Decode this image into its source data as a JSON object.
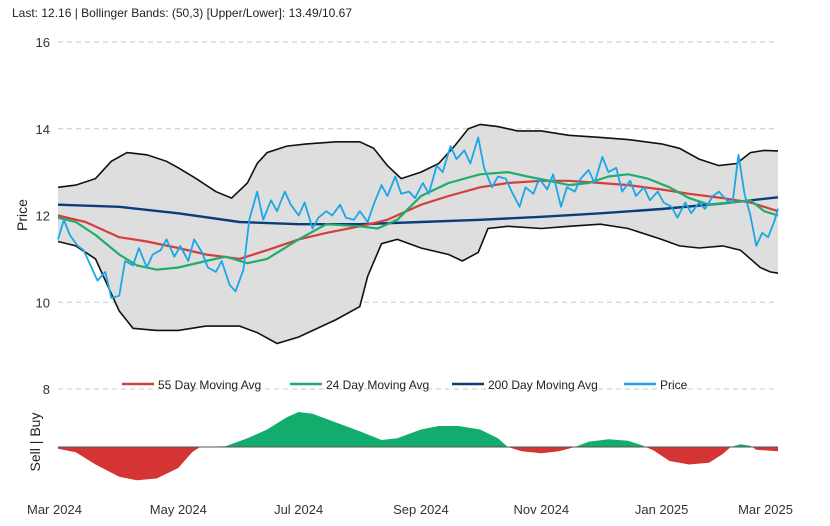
{
  "header": {
    "text": "Last: 12.16 | Bollinger Bands: (50,3) [Upper/Lower]: 13.49/10.67"
  },
  "chart_data": {
    "type": "line",
    "ylabel": "Price",
    "signal_label": "Sell | Buy",
    "ylim": [
      8,
      16
    ],
    "y_ticks": [
      8,
      10,
      12,
      14,
      16
    ],
    "x_range": [
      "2024-03-01",
      "2025-03-01"
    ],
    "x_ticks": [
      {
        "date": "2024-03-01",
        "label": "Mar 2024"
      },
      {
        "date": "2024-05-01",
        "label": "May 2024"
      },
      {
        "date": "2024-07-01",
        "label": "Jul 2024"
      },
      {
        "date": "2024-09-01",
        "label": "Sep 2024"
      },
      {
        "date": "2024-11-01",
        "label": "Nov 2024"
      },
      {
        "date": "2025-01-01",
        "label": "Jan 2025"
      },
      {
        "date": "2025-03-01",
        "label": "Mar 2025"
      }
    ],
    "grid": true,
    "colors": {
      "price": "#1aa7e8",
      "ma55": "#d63d3d",
      "ma24": "#1fad6b",
      "ma200": "#0b3d7a",
      "band_fill": "#dedede",
      "band_line": "#111111",
      "buy": "#12ad6c",
      "sell": "#d53434"
    },
    "legend": [
      {
        "key": "ma55",
        "label": "55 Day Moving Avg"
      },
      {
        "key": "ma24",
        "label": "24 Day Moving Avg"
      },
      {
        "key": "ma200",
        "label": "200 Day Moving Avg"
      },
      {
        "key": "price",
        "label": "Price"
      }
    ],
    "series": {
      "upper": [
        [
          "2024-03-01",
          12.65
        ],
        [
          "2024-03-10",
          12.7
        ],
        [
          "2024-03-20",
          12.85
        ],
        [
          "2024-03-28",
          13.25
        ],
        [
          "2024-04-05",
          13.45
        ],
        [
          "2024-04-15",
          13.4
        ],
        [
          "2024-04-25",
          13.25
        ],
        [
          "2024-05-01",
          13.1
        ],
        [
          "2024-05-10",
          12.85
        ],
        [
          "2024-05-20",
          12.55
        ],
        [
          "2024-05-28",
          12.4
        ],
        [
          "2024-06-05",
          12.75
        ],
        [
          "2024-06-10",
          13.2
        ],
        [
          "2024-06-15",
          13.45
        ],
        [
          "2024-06-25",
          13.6
        ],
        [
          "2024-07-05",
          13.65
        ],
        [
          "2024-07-20",
          13.7
        ],
        [
          "2024-08-01",
          13.7
        ],
        [
          "2024-08-08",
          13.55
        ],
        [
          "2024-08-15",
          13.15
        ],
        [
          "2024-08-22",
          12.85
        ],
        [
          "2024-09-01",
          13.0
        ],
        [
          "2024-09-10",
          13.2
        ],
        [
          "2024-09-18",
          13.6
        ],
        [
          "2024-09-25",
          14.0
        ],
        [
          "2024-10-01",
          14.1
        ],
        [
          "2024-10-10",
          14.05
        ],
        [
          "2024-10-20",
          13.95
        ],
        [
          "2024-11-01",
          13.95
        ],
        [
          "2024-11-15",
          13.85
        ],
        [
          "2024-12-01",
          13.8
        ],
        [
          "2024-12-15",
          13.75
        ],
        [
          "2025-01-01",
          13.65
        ],
        [
          "2025-01-10",
          13.55
        ],
        [
          "2025-01-20",
          13.3
        ],
        [
          "2025-01-30",
          13.15
        ],
        [
          "2025-02-08",
          13.2
        ],
        [
          "2025-02-15",
          13.45
        ],
        [
          "2025-02-22",
          13.5
        ],
        [
          "2025-03-01",
          13.49
        ]
      ],
      "lower": [
        [
          "2024-03-01",
          11.4
        ],
        [
          "2024-03-10",
          11.3
        ],
        [
          "2024-03-20",
          11.0
        ],
        [
          "2024-04-01",
          9.8
        ],
        [
          "2024-04-08",
          9.4
        ],
        [
          "2024-04-20",
          9.35
        ],
        [
          "2024-05-01",
          9.35
        ],
        [
          "2024-05-15",
          9.45
        ],
        [
          "2024-06-01",
          9.45
        ],
        [
          "2024-06-10",
          9.3
        ],
        [
          "2024-06-20",
          9.05
        ],
        [
          "2024-07-01",
          9.2
        ],
        [
          "2024-07-20",
          9.6
        ],
        [
          "2024-08-01",
          9.9
        ],
        [
          "2024-08-05",
          10.6
        ],
        [
          "2024-08-12",
          11.35
        ],
        [
          "2024-08-20",
          11.45
        ],
        [
          "2024-09-01",
          11.25
        ],
        [
          "2024-09-15",
          11.1
        ],
        [
          "2024-09-22",
          10.95
        ],
        [
          "2024-09-30",
          11.15
        ],
        [
          "2024-10-05",
          11.7
        ],
        [
          "2024-10-15",
          11.75
        ],
        [
          "2024-11-01",
          11.7
        ],
        [
          "2024-11-15",
          11.75
        ],
        [
          "2024-12-01",
          11.8
        ],
        [
          "2024-12-15",
          11.7
        ],
        [
          "2025-01-01",
          11.45
        ],
        [
          "2025-01-10",
          11.3
        ],
        [
          "2025-01-20",
          11.25
        ],
        [
          "2025-02-01",
          11.3
        ],
        [
          "2025-02-10",
          11.2
        ],
        [
          "2025-02-20",
          10.8
        ],
        [
          "2025-02-25",
          10.7
        ],
        [
          "2025-03-01",
          10.67
        ]
      ],
      "ma200": [
        [
          "2024-03-01",
          12.25
        ],
        [
          "2024-04-01",
          12.2
        ],
        [
          "2024-05-01",
          12.05
        ],
        [
          "2024-06-01",
          11.85
        ],
        [
          "2024-07-01",
          11.8
        ],
        [
          "2024-08-01",
          11.8
        ],
        [
          "2024-09-01",
          11.85
        ],
        [
          "2024-10-01",
          11.9
        ],
        [
          "2024-11-01",
          11.97
        ],
        [
          "2024-12-01",
          12.05
        ],
        [
          "2025-01-01",
          12.15
        ],
        [
          "2025-02-01",
          12.28
        ],
        [
          "2025-03-01",
          12.42
        ]
      ],
      "ma55": [
        [
          "2024-03-01",
          12.0
        ],
        [
          "2024-03-15",
          11.85
        ],
        [
          "2024-04-01",
          11.5
        ],
        [
          "2024-04-15",
          11.4
        ],
        [
          "2024-05-01",
          11.25
        ],
        [
          "2024-05-15",
          11.1
        ],
        [
          "2024-06-01",
          11.0
        ],
        [
          "2024-06-15",
          11.2
        ],
        [
          "2024-07-01",
          11.45
        ],
        [
          "2024-07-15",
          11.6
        ],
        [
          "2024-08-01",
          11.75
        ],
        [
          "2024-08-15",
          11.9
        ],
        [
          "2024-09-01",
          12.25
        ],
        [
          "2024-09-15",
          12.45
        ],
        [
          "2024-10-01",
          12.65
        ],
        [
          "2024-10-15",
          12.75
        ],
        [
          "2024-11-01",
          12.8
        ],
        [
          "2024-11-15",
          12.8
        ],
        [
          "2024-12-01",
          12.75
        ],
        [
          "2024-12-15",
          12.7
        ],
        [
          "2025-01-01",
          12.6
        ],
        [
          "2025-01-15",
          12.5
        ],
        [
          "2025-02-01",
          12.4
        ],
        [
          "2025-02-15",
          12.3
        ],
        [
          "2025-03-01",
          12.1
        ]
      ],
      "ma24": [
        [
          "2024-03-01",
          11.95
        ],
        [
          "2024-03-10",
          11.85
        ],
        [
          "2024-03-20",
          11.55
        ],
        [
          "2024-04-01",
          11.1
        ],
        [
          "2024-04-10",
          10.85
        ],
        [
          "2024-04-20",
          10.75
        ],
        [
          "2024-05-01",
          10.8
        ],
        [
          "2024-05-15",
          10.95
        ],
        [
          "2024-05-25",
          11.05
        ],
        [
          "2024-06-05",
          10.9
        ],
        [
          "2024-06-15",
          11.0
        ],
        [
          "2024-07-01",
          11.45
        ],
        [
          "2024-07-15",
          11.8
        ],
        [
          "2024-08-01",
          11.75
        ],
        [
          "2024-08-10",
          11.7
        ],
        [
          "2024-08-20",
          11.9
        ],
        [
          "2024-09-01",
          12.45
        ],
        [
          "2024-09-15",
          12.75
        ],
        [
          "2024-10-01",
          12.95
        ],
        [
          "2024-10-15",
          13.0
        ],
        [
          "2024-10-25",
          12.9
        ],
        [
          "2024-11-05",
          12.8
        ],
        [
          "2024-11-15",
          12.7
        ],
        [
          "2024-11-25",
          12.75
        ],
        [
          "2024-12-05",
          12.9
        ],
        [
          "2024-12-15",
          12.95
        ],
        [
          "2024-12-25",
          12.85
        ],
        [
          "2025-01-05",
          12.65
        ],
        [
          "2025-01-15",
          12.4
        ],
        [
          "2025-01-25",
          12.25
        ],
        [
          "2025-02-05",
          12.3
        ],
        [
          "2025-02-15",
          12.35
        ],
        [
          "2025-02-22",
          12.1
        ],
        [
          "2025-03-01",
          12.0
        ]
      ],
      "price": [
        [
          "2024-03-01",
          11.45
        ],
        [
          "2024-03-04",
          11.9
        ],
        [
          "2024-03-07",
          11.55
        ],
        [
          "2024-03-11",
          11.3
        ],
        [
          "2024-03-14",
          11.2
        ],
        [
          "2024-03-18",
          10.8
        ],
        [
          "2024-03-21",
          10.5
        ],
        [
          "2024-03-25",
          10.7
        ],
        [
          "2024-03-28",
          10.1
        ],
        [
          "2024-04-01",
          10.15
        ],
        [
          "2024-04-04",
          10.95
        ],
        [
          "2024-04-08",
          10.85
        ],
        [
          "2024-04-11",
          11.25
        ],
        [
          "2024-04-15",
          10.8
        ],
        [
          "2024-04-18",
          11.1
        ],
        [
          "2024-04-22",
          11.2
        ],
        [
          "2024-04-25",
          11.45
        ],
        [
          "2024-04-29",
          11.05
        ],
        [
          "2024-05-02",
          11.3
        ],
        [
          "2024-05-06",
          10.95
        ],
        [
          "2024-05-09",
          11.45
        ],
        [
          "2024-05-13",
          11.15
        ],
        [
          "2024-05-16",
          10.8
        ],
        [
          "2024-05-20",
          10.7
        ],
        [
          "2024-05-23",
          10.95
        ],
        [
          "2024-05-27",
          10.4
        ],
        [
          "2024-05-30",
          10.25
        ],
        [
          "2024-06-03",
          10.75
        ],
        [
          "2024-06-06",
          11.9
        ],
        [
          "2024-06-10",
          12.55
        ],
        [
          "2024-06-13",
          11.9
        ],
        [
          "2024-06-17",
          12.35
        ],
        [
          "2024-06-20",
          12.1
        ],
        [
          "2024-06-24",
          12.55
        ],
        [
          "2024-06-27",
          12.25
        ],
        [
          "2024-07-01",
          12.0
        ],
        [
          "2024-07-04",
          12.3
        ],
        [
          "2024-07-08",
          11.7
        ],
        [
          "2024-07-11",
          11.95
        ],
        [
          "2024-07-15",
          12.1
        ],
        [
          "2024-07-18",
          12.0
        ],
        [
          "2024-07-22",
          12.25
        ],
        [
          "2024-07-25",
          11.95
        ],
        [
          "2024-07-29",
          11.9
        ],
        [
          "2024-08-01",
          12.1
        ],
        [
          "2024-08-05",
          11.85
        ],
        [
          "2024-08-08",
          12.25
        ],
        [
          "2024-08-12",
          12.7
        ],
        [
          "2024-08-15",
          12.45
        ],
        [
          "2024-08-19",
          12.9
        ],
        [
          "2024-08-22",
          12.5
        ],
        [
          "2024-08-26",
          12.55
        ],
        [
          "2024-08-29",
          12.4
        ],
        [
          "2024-09-02",
          12.75
        ],
        [
          "2024-09-05",
          12.5
        ],
        [
          "2024-09-09",
          13.15
        ],
        [
          "2024-09-12",
          13.0
        ],
        [
          "2024-09-16",
          13.6
        ],
        [
          "2024-09-19",
          13.3
        ],
        [
          "2024-09-23",
          13.5
        ],
        [
          "2024-09-26",
          13.2
        ],
        [
          "2024-09-30",
          13.8
        ],
        [
          "2024-10-03",
          13.1
        ],
        [
          "2024-10-07",
          12.65
        ],
        [
          "2024-10-10",
          12.9
        ],
        [
          "2024-10-14",
          12.85
        ],
        [
          "2024-10-17",
          12.55
        ],
        [
          "2024-10-21",
          12.2
        ],
        [
          "2024-10-24",
          12.65
        ],
        [
          "2024-10-28",
          12.5
        ],
        [
          "2024-10-31",
          12.85
        ],
        [
          "2024-11-04",
          12.6
        ],
        [
          "2024-11-07",
          12.95
        ],
        [
          "2024-11-11",
          12.2
        ],
        [
          "2024-11-14",
          12.65
        ],
        [
          "2024-11-18",
          12.55
        ],
        [
          "2024-11-21",
          12.85
        ],
        [
          "2024-11-25",
          13.05
        ],
        [
          "2024-11-28",
          12.75
        ],
        [
          "2024-12-02",
          13.35
        ],
        [
          "2024-12-05",
          13.0
        ],
        [
          "2024-12-09",
          13.1
        ],
        [
          "2024-12-12",
          12.55
        ],
        [
          "2024-12-16",
          12.8
        ],
        [
          "2024-12-19",
          12.45
        ],
        [
          "2024-12-23",
          12.65
        ],
        [
          "2024-12-26",
          12.35
        ],
        [
          "2024-12-30",
          12.55
        ],
        [
          "2025-01-02",
          12.3
        ],
        [
          "2025-01-06",
          12.2
        ],
        [
          "2025-01-09",
          11.95
        ],
        [
          "2025-01-13",
          12.3
        ],
        [
          "2025-01-16",
          12.05
        ],
        [
          "2025-01-20",
          12.3
        ],
        [
          "2025-01-23",
          12.15
        ],
        [
          "2025-01-27",
          12.45
        ],
        [
          "2025-01-30",
          12.55
        ],
        [
          "2025-02-03",
          12.35
        ],
        [
          "2025-02-06",
          12.3
        ],
        [
          "2025-02-09",
          13.4
        ],
        [
          "2025-02-12",
          12.5
        ],
        [
          "2025-02-15",
          12.0
        ],
        [
          "2025-02-18",
          11.3
        ],
        [
          "2025-02-21",
          11.6
        ],
        [
          "2025-02-24",
          11.5
        ],
        [
          "2025-02-27",
          11.85
        ],
        [
          "2025-03-01",
          12.16
        ]
      ]
    },
    "signal": [
      [
        "2024-03-01",
        -0.05
      ],
      [
        "2024-03-10",
        -0.15
      ],
      [
        "2024-03-20",
        -0.5
      ],
      [
        "2024-04-01",
        -0.85
      ],
      [
        "2024-04-10",
        -0.95
      ],
      [
        "2024-04-20",
        -0.9
      ],
      [
        "2024-05-01",
        -0.6
      ],
      [
        "2024-05-08",
        -0.15
      ],
      [
        "2024-05-12",
        0.0
      ],
      [
        "2024-05-25",
        0.02
      ],
      [
        "2024-06-05",
        0.25
      ],
      [
        "2024-06-15",
        0.5
      ],
      [
        "2024-06-25",
        0.85
      ],
      [
        "2024-07-01",
        1.0
      ],
      [
        "2024-07-08",
        0.95
      ],
      [
        "2024-07-20",
        0.7
      ],
      [
        "2024-08-01",
        0.45
      ],
      [
        "2024-08-12",
        0.2
      ],
      [
        "2024-08-20",
        0.25
      ],
      [
        "2024-09-01",
        0.5
      ],
      [
        "2024-09-10",
        0.6
      ],
      [
        "2024-09-20",
        0.6
      ],
      [
        "2024-10-01",
        0.5
      ],
      [
        "2024-10-10",
        0.25
      ],
      [
        "2024-10-15",
        0.0
      ],
      [
        "2024-10-22",
        -0.12
      ],
      [
        "2024-11-01",
        -0.18
      ],
      [
        "2024-11-10",
        -0.12
      ],
      [
        "2024-11-18",
        0.0
      ],
      [
        "2024-11-25",
        0.15
      ],
      [
        "2024-12-05",
        0.22
      ],
      [
        "2024-12-15",
        0.18
      ],
      [
        "2024-12-22",
        0.05
      ],
      [
        "2024-12-28",
        -0.1
      ],
      [
        "2025-01-05",
        -0.4
      ],
      [
        "2025-01-15",
        -0.5
      ],
      [
        "2025-01-25",
        -0.45
      ],
      [
        "2025-02-01",
        -0.2
      ],
      [
        "2025-02-05",
        0.0
      ],
      [
        "2025-02-10",
        0.08
      ],
      [
        "2025-02-15",
        0.03
      ],
      [
        "2025-02-18",
        -0.08
      ],
      [
        "2025-03-01",
        -0.12
      ]
    ]
  }
}
